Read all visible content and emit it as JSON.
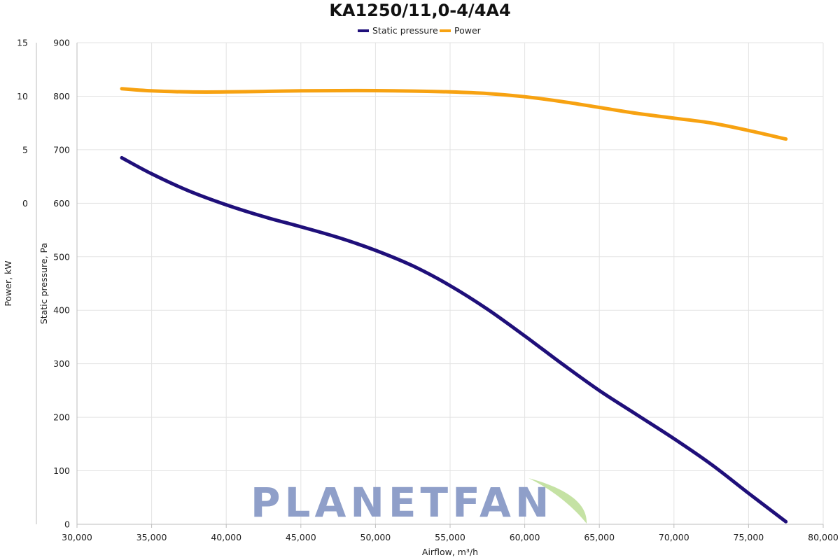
{
  "chart_data": {
    "type": "line",
    "title": "KA1250/11,0-4/4A4",
    "xlabel": "Airflow, m³/h",
    "ylabel": "Static pressure, Pa",
    "y2label": "Power, kW",
    "xlim": [
      30000,
      80000
    ],
    "ylim": [
      0,
      900
    ],
    "y2lim": [
      -30,
      15
    ],
    "x_ticks": [
      "30,000",
      "35,000",
      "40,000",
      "45,000",
      "50,000",
      "55,000",
      "60,000",
      "65,000",
      "70,000",
      "75,000",
      "80,000"
    ],
    "y_ticks": [
      "0",
      "100",
      "200",
      "300",
      "400",
      "500",
      "600",
      "700",
      "800",
      "900"
    ],
    "y2_ticks": [
      "0",
      "5",
      "10",
      "15"
    ],
    "grid": true,
    "legend_position": "top-center",
    "series": [
      {
        "name": "Static pressure",
        "axis": "left",
        "color": "#1f0f7a",
        "x": [
          33000,
          35000,
          37500,
          40000,
          42500,
          45000,
          47500,
          50000,
          52500,
          55000,
          57500,
          60000,
          62500,
          65000,
          67500,
          70000,
          72500,
          75000,
          77500
        ],
        "y": [
          685,
          655,
          623,
          597,
          575,
          556,
          536,
          512,
          483,
          446,
          402,
          352,
          300,
          250,
          205,
          160,
          112,
          58,
          5
        ]
      },
      {
        "name": "Power",
        "axis": "right",
        "color": "#f7a211",
        "x": [
          33000,
          35000,
          37500,
          40000,
          42500,
          45000,
          47500,
          50000,
          52500,
          55000,
          57500,
          60000,
          62500,
          65000,
          67500,
          70000,
          72500,
          75000,
          77500
        ],
        "y": [
          10.7,
          10.5,
          10.4,
          10.4,
          10.45,
          10.5,
          10.52,
          10.52,
          10.48,
          10.4,
          10.25,
          9.95,
          9.5,
          8.95,
          8.4,
          7.95,
          7.5,
          6.8,
          6.0
        ]
      }
    ]
  },
  "watermark": {
    "text": "PLANETFAN",
    "color": "#8f9fc9",
    "leaf_color": "#c5e2a4"
  }
}
